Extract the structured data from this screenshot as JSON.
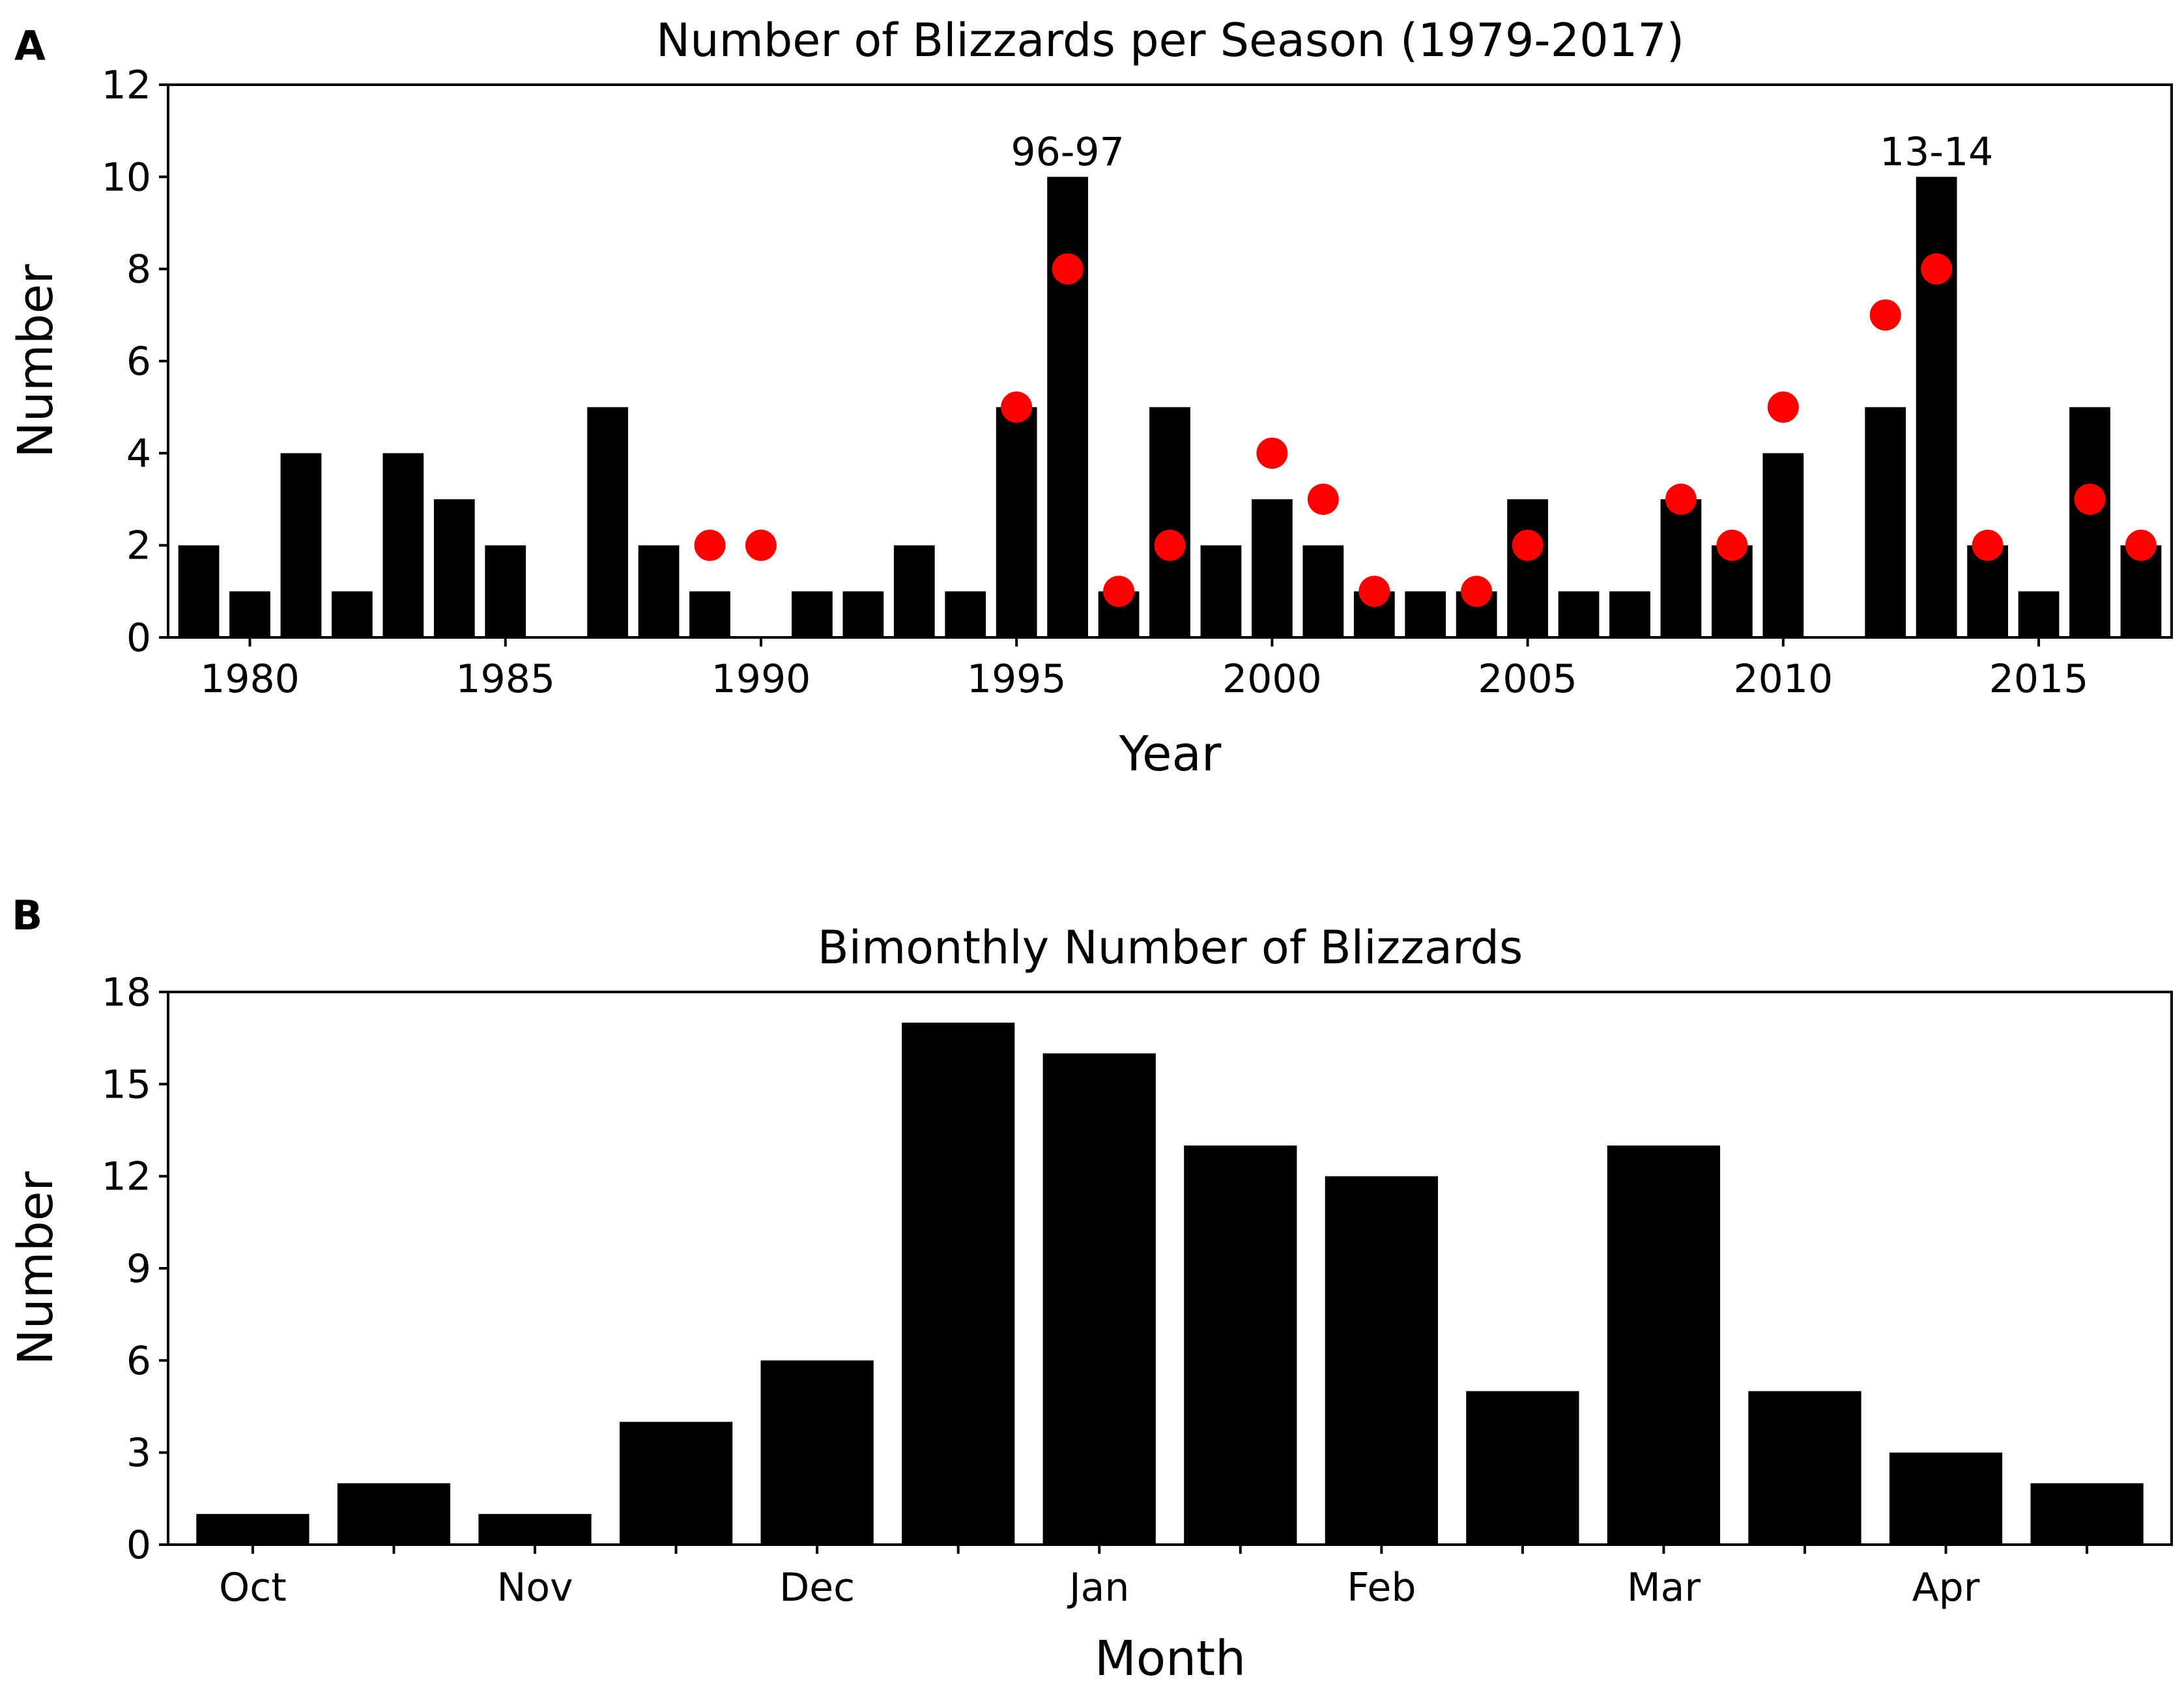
{
  "colors": {
    "bar": "#000000",
    "dot": "#ff0000",
    "background": "#ffffff"
  },
  "chart_data": [
    {
      "panel": "A",
      "type": "bar",
      "title": "Number of Blizzards per Season (1979-2017)",
      "xlabel": "Year",
      "ylabel": "Number",
      "xlim": [
        1978.4,
        2017.6
      ],
      "ylim": [
        0,
        12
      ],
      "yticks": [
        0,
        2,
        4,
        6,
        8,
        10,
        12
      ],
      "xticks": [
        1980,
        1985,
        1990,
        1995,
        2000,
        2005,
        2010,
        2015
      ],
      "x": [
        1979,
        1980,
        1981,
        1982,
        1983,
        1984,
        1985,
        1986,
        1987,
        1988,
        1989,
        1990,
        1991,
        1992,
        1993,
        1994,
        1995,
        1996,
        1997,
        1998,
        1999,
        2000,
        2001,
        2002,
        2003,
        2004,
        2005,
        2006,
        2007,
        2008,
        2009,
        2010,
        2011,
        2012,
        2013,
        2014,
        2015,
        2016,
        2017
      ],
      "series": [
        {
          "name": "Blizzards",
          "mark": "bar",
          "values": [
            2,
            1,
            4,
            1,
            4,
            3,
            2,
            0,
            5,
            2,
            1,
            0,
            1,
            1,
            2,
            1,
            5,
            10,
            1,
            5,
            2,
            3,
            2,
            1,
            1,
            1,
            3,
            1,
            1,
            3,
            2,
            4,
            0,
            5,
            10,
            2,
            1,
            5,
            2
          ]
        },
        {
          "name": "Red dots",
          "mark": "dot",
          "points": [
            {
              "x": 1989,
              "y": 2
            },
            {
              "x": 1990,
              "y": 2
            },
            {
              "x": 1995,
              "y": 5
            },
            {
              "x": 1996,
              "y": 8
            },
            {
              "x": 1997,
              "y": 1
            },
            {
              "x": 1998,
              "y": 2
            },
            {
              "x": 2000,
              "y": 4
            },
            {
              "x": 2001,
              "y": 3
            },
            {
              "x": 2002,
              "y": 1
            },
            {
              "x": 2004,
              "y": 1
            },
            {
              "x": 2005,
              "y": 2
            },
            {
              "x": 2008,
              "y": 3
            },
            {
              "x": 2009,
              "y": 2
            },
            {
              "x": 2010,
              "y": 5
            },
            {
              "x": 2012,
              "y": 7
            },
            {
              "x": 2013,
              "y": 8
            },
            {
              "x": 2014,
              "y": 2
            },
            {
              "x": 2016,
              "y": 3
            },
            {
              "x": 2017,
              "y": 2
            }
          ]
        }
      ],
      "annotations": [
        {
          "text": "96-97",
          "x": 1996,
          "y": 10
        },
        {
          "text": "13-14",
          "x": 2013,
          "y": 10
        }
      ]
    },
    {
      "panel": "B",
      "type": "bar",
      "title": "Bimonthly Number of Blizzards",
      "xlabel": "Month",
      "ylabel": "Number",
      "ylim": [
        0,
        18
      ],
      "yticks": [
        0,
        3,
        6,
        9,
        12,
        15,
        18
      ],
      "month_labels": [
        "Oct",
        "Nov",
        "Dec",
        "Jan",
        "Feb",
        "Mar",
        "Apr"
      ],
      "values": [
        1,
        2,
        1,
        4,
        6,
        17,
        16,
        13,
        12,
        5,
        13,
        5,
        3,
        2
      ]
    }
  ]
}
